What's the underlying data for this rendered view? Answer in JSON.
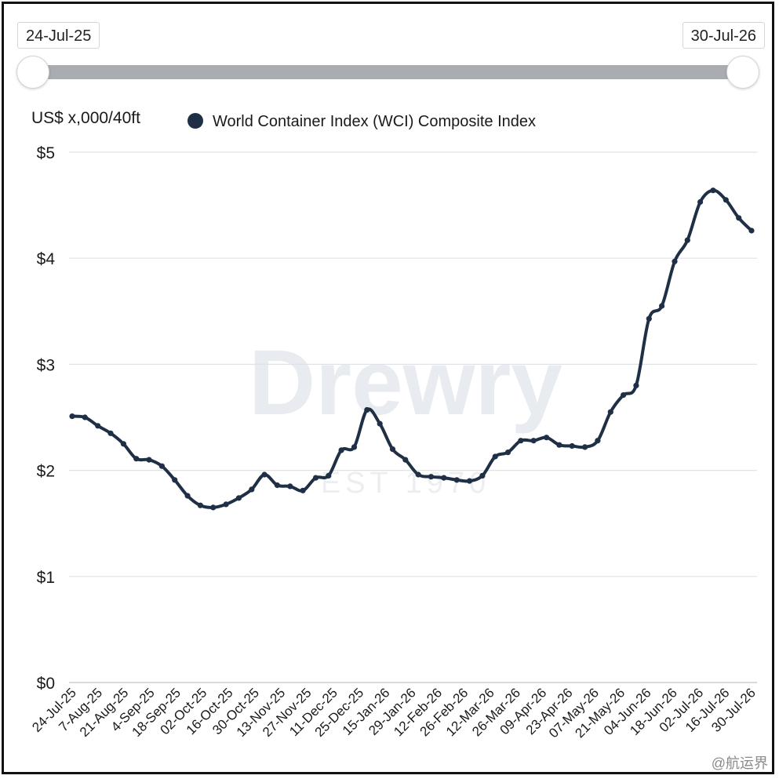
{
  "range_slider": {
    "start_label": "24-Jul-25",
    "end_label": "30-Jul-26"
  },
  "watermark": {
    "brand": "Drewry",
    "tagline": "EST 1970",
    "footer": "@航运界"
  },
  "chart_data": {
    "type": "line",
    "unit_label": "US$ x,000/40ft",
    "yticks": [
      "$0",
      "$1",
      "$2",
      "$3",
      "$4",
      "$5"
    ],
    "ylim": [
      0,
      5
    ],
    "grid": true,
    "legend_position": "top",
    "series": [
      {
        "name": "World Container Index (WCI) Composite Index",
        "color": "#1f2f45",
        "points": [
          [
            "2025-07-24",
            2.51
          ],
          [
            "2025-07-31",
            2.5
          ],
          [
            "2025-08-07",
            2.42
          ],
          [
            "2025-08-14",
            2.35
          ],
          [
            "2025-08-21",
            2.25
          ],
          [
            "2025-08-28",
            2.11
          ],
          [
            "2025-09-04",
            2.1
          ],
          [
            "2025-09-11",
            2.04
          ],
          [
            "2025-09-18",
            1.91
          ],
          [
            "2025-09-25",
            1.76
          ],
          [
            "2025-10-02",
            1.67
          ],
          [
            "2025-10-09",
            1.65
          ],
          [
            "2025-10-16",
            1.68
          ],
          [
            "2025-10-23",
            1.74
          ],
          [
            "2025-10-30",
            1.82
          ],
          [
            "2025-11-06",
            1.96
          ],
          [
            "2025-11-13",
            1.86
          ],
          [
            "2025-11-20",
            1.85
          ],
          [
            "2025-11-27",
            1.81
          ],
          [
            "2025-12-04",
            1.93
          ],
          [
            "2025-12-11",
            1.95
          ],
          [
            "2025-12-18",
            2.19
          ],
          [
            "2025-12-25",
            2.22
          ],
          [
            "2026-01-01",
            2.57
          ],
          [
            "2026-01-08",
            2.44
          ],
          [
            "2026-01-15",
            2.2
          ],
          [
            "2026-01-22",
            2.1
          ],
          [
            "2026-01-29",
            1.96
          ],
          [
            "2026-02-05",
            1.94
          ],
          [
            "2026-02-12",
            1.93
          ],
          [
            "2026-02-19",
            1.91
          ],
          [
            "2026-02-26",
            1.9
          ],
          [
            "2026-03-05",
            1.95
          ],
          [
            "2026-03-12",
            2.13
          ],
          [
            "2026-03-19",
            2.17
          ],
          [
            "2026-03-26",
            2.28
          ],
          [
            "2026-04-02",
            2.28
          ],
          [
            "2026-04-09",
            2.31
          ],
          [
            "2026-04-16",
            2.24
          ],
          [
            "2026-04-23",
            2.23
          ],
          [
            "2026-04-30",
            2.22
          ],
          [
            "2026-05-07",
            2.28
          ],
          [
            "2026-05-14",
            2.55
          ],
          [
            "2026-05-21",
            2.71
          ],
          [
            "2026-05-28",
            2.8
          ],
          [
            "2026-06-04",
            3.43
          ],
          [
            "2026-06-11",
            3.55
          ],
          [
            "2026-06-18",
            3.97
          ],
          [
            "2026-06-25",
            4.17
          ],
          [
            "2026-07-02",
            4.53
          ],
          [
            "2026-07-09",
            4.64
          ],
          [
            "2026-07-16",
            4.55
          ],
          [
            "2026-07-23",
            4.38
          ],
          [
            "2026-07-30",
            4.26
          ]
        ]
      }
    ],
    "x_tick_labels": [
      "24-Jul-25",
      "7-Aug-25",
      "21-Aug-25",
      "4-Sep-25",
      "18-Sep-25",
      "02-Oct-25",
      "16-Oct-25",
      "30-Oct-25",
      "13-Nov-25",
      "27-Nov-25",
      "11-Dec-25",
      "25-Dec-25",
      "15-Jan-26",
      "29-Jan-26",
      "12-Feb-26",
      "26-Feb-26",
      "12-Mar-26",
      "26-Mar-26",
      "09-Apr-26",
      "23-Apr-26",
      "07-May-26",
      "21-May-26",
      "04-Jun-26",
      "18-Jun-26",
      "02-Jul-26",
      "16-Jul-26",
      "30-Jul-26"
    ]
  }
}
